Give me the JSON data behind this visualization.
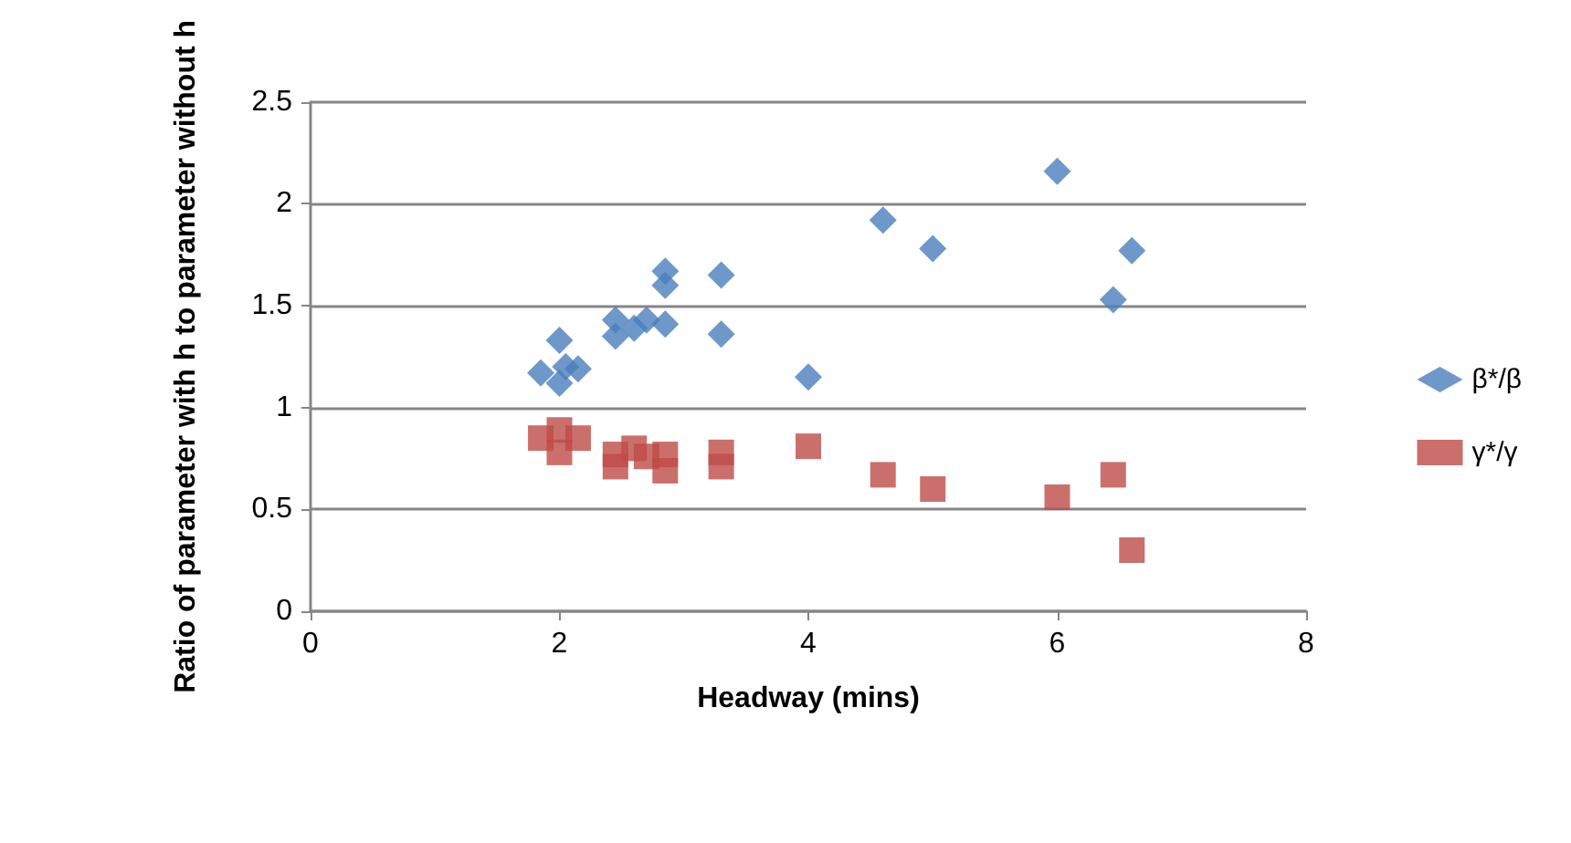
{
  "chart_data": {
    "type": "scatter",
    "xlabel": "Headway (mins)",
    "ylabel": "Ratio of parameter with h to parameter without h",
    "xlim": [
      0,
      8
    ],
    "xticks": [
      0,
      2,
      4,
      6,
      8
    ],
    "ylim": [
      0,
      2.5
    ],
    "yticks": [
      0,
      0.5,
      1,
      1.5,
      2,
      2.5
    ],
    "grid": "y",
    "legend": "right",
    "series": [
      {
        "name": "β*/β",
        "color": "#4a7ebb",
        "marker": "diamond",
        "x": [
          1.85,
          2.0,
          2.0,
          2.05,
          2.15,
          2.45,
          2.45,
          2.6,
          2.7,
          2.85,
          2.85,
          2.85,
          3.3,
          3.3,
          4.0,
          4.6,
          5.0,
          6.0,
          6.45,
          6.6
        ],
        "values": [
          1.17,
          1.33,
          1.12,
          1.2,
          1.19,
          1.43,
          1.35,
          1.39,
          1.43,
          1.67,
          1.6,
          1.41,
          1.65,
          1.36,
          1.15,
          1.92,
          1.78,
          2.16,
          1.53,
          1.77
        ]
      },
      {
        "name": "γ*/γ",
        "color": "#be4b48",
        "marker": "square",
        "x": [
          1.85,
          2.0,
          2.0,
          2.15,
          2.45,
          2.45,
          2.6,
          2.7,
          2.85,
          2.85,
          3.3,
          3.3,
          4.0,
          4.6,
          5.0,
          6.0,
          6.45,
          6.6
        ],
        "values": [
          0.85,
          0.89,
          0.78,
          0.85,
          0.71,
          0.77,
          0.8,
          0.76,
          0.69,
          0.77,
          0.78,
          0.71,
          0.81,
          0.67,
          0.6,
          0.56,
          0.67,
          0.3
        ]
      }
    ]
  }
}
